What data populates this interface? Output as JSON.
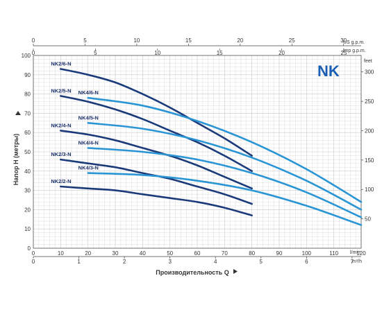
{
  "chart_data": {
    "type": "line",
    "brand": "NK",
    "xlabel": "Производительность Q",
    "ylabel": "Напор H (метры)",
    "x_primary": {
      "unit": "l/min",
      "range": [
        0,
        120
      ],
      "ticks": [
        0,
        10,
        20,
        30,
        40,
        50,
        60,
        70,
        80,
        90,
        100,
        110,
        120
      ]
    },
    "x_m3h": {
      "unit": "m³/h",
      "range": [
        0,
        7.2
      ],
      "ticks": [
        0,
        1,
        2,
        3,
        4,
        5,
        6,
        7
      ]
    },
    "x_us_gpm": {
      "unit": "US g.p.m.",
      "range": [
        0,
        31.7
      ],
      "ticks": [
        0,
        5,
        10,
        15,
        20,
        25,
        30
      ]
    },
    "x_imp_gpm": {
      "unit": "imp g.p.m.",
      "range": [
        0,
        26.4
      ],
      "ticks": [
        0,
        5,
        10,
        15,
        20,
        25
      ]
    },
    "y_primary": {
      "unit": "",
      "range": [
        0,
        100
      ],
      "ticks": [
        0,
        10,
        20,
        30,
        40,
        50,
        60,
        70,
        80,
        90,
        100
      ]
    },
    "y_feet": {
      "unit": "feet",
      "range": [
        0,
        328
      ],
      "ticks": [
        50,
        100,
        150,
        200,
        250,
        300
      ]
    },
    "grid": true,
    "colors": {
      "nk2": "#1a3a7a",
      "nk4": "#2a95d5",
      "grid": "#c8c8c8",
      "brand": "#1a5fb4"
    },
    "series": [
      {
        "name": "NK2/6-N",
        "group": "nk2",
        "x": [
          10,
          20,
          30,
          40,
          50,
          60,
          70,
          80
        ],
        "y": [
          93,
          90,
          86,
          80,
          73,
          65,
          57,
          48
        ]
      },
      {
        "name": "NK2/5-N",
        "group": "nk2",
        "x": [
          10,
          20,
          30,
          40,
          50,
          60,
          70,
          80
        ],
        "y": [
          79,
          76,
          72,
          67,
          61,
          55,
          48,
          40
        ]
      },
      {
        "name": "NK2/4-N",
        "group": "nk2",
        "x": [
          10,
          20,
          30,
          40,
          50,
          60,
          70,
          80
        ],
        "y": [
          61,
          59,
          56,
          52,
          48,
          43,
          37,
          31
        ]
      },
      {
        "name": "NK2/3-N",
        "group": "nk2",
        "x": [
          10,
          20,
          30,
          40,
          50,
          60,
          70,
          80
        ],
        "y": [
          46,
          44,
          42,
          39,
          36,
          32,
          28,
          23
        ]
      },
      {
        "name": "NK2/2-N",
        "group": "nk2",
        "x": [
          10,
          20,
          30,
          40,
          50,
          60,
          70,
          80
        ],
        "y": [
          32,
          31,
          30,
          28,
          26,
          24,
          21,
          17
        ]
      },
      {
        "name": "NK4/6-N",
        "group": "nk4",
        "x": [
          20,
          40,
          60,
          80,
          100,
          120
        ],
        "y": [
          78,
          74,
          66,
          55,
          41,
          24
        ]
      },
      {
        "name": "NK4/5-N",
        "group": "nk4",
        "x": [
          20,
          40,
          60,
          80,
          100,
          120
        ],
        "y": [
          65,
          62,
          56,
          47,
          35,
          20
        ]
      },
      {
        "name": "NK4/4-N",
        "group": "nk4",
        "x": [
          20,
          40,
          60,
          80,
          100,
          120
        ],
        "y": [
          52,
          50,
          46,
          39,
          29,
          16
        ]
      },
      {
        "name": "NK4/3-N",
        "group": "nk4",
        "x": [
          20,
          40,
          60,
          80,
          100,
          120
        ],
        "y": [
          39,
          38,
          35,
          30,
          22,
          12
        ]
      }
    ]
  }
}
